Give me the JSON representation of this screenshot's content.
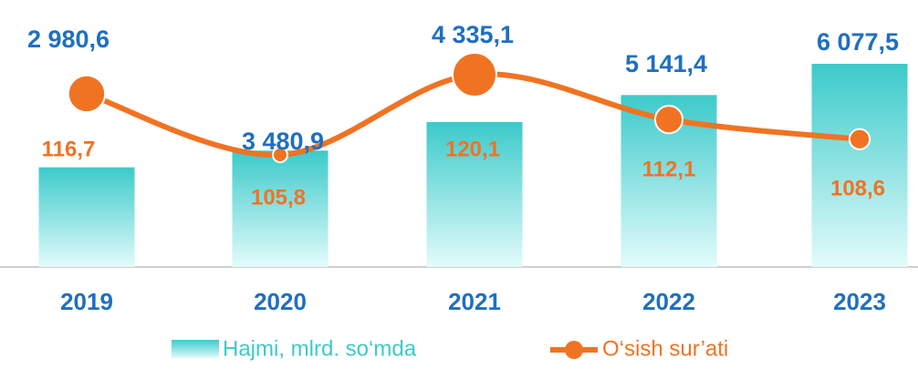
{
  "chart_data": {
    "type": "bar-line",
    "categories": [
      "2019",
      "2020",
      "2021",
      "2022",
      "2023"
    ],
    "series": [
      {
        "name": "Hajmi, mlrd. so‘mda",
        "type": "bar",
        "color": "#3ccaca",
        "values": [
          2980.6,
          3480.9,
          4335.1,
          5141.4,
          6077.5
        ],
        "value_labels": [
          "2 980,6",
          "3 480,9",
          "4 335,1",
          "5 141,4",
          "6 077,5"
        ]
      },
      {
        "name": "O‘sish sur’ati",
        "type": "line",
        "axis": "y2",
        "color": "#f07322",
        "values": [
          116.7,
          105.8,
          120.1,
          112.1,
          108.6
        ],
        "value_labels": [
          "116,7",
          "105,8",
          "120,1",
          "112,1",
          "108,6"
        ]
      }
    ]
  }
}
